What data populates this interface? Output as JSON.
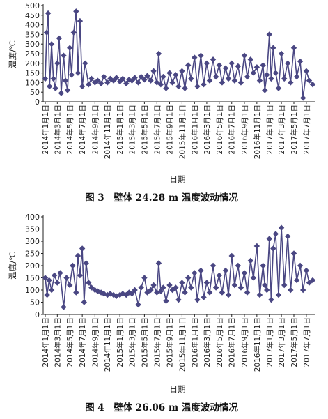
{
  "chart_data": [
    {
      "type": "line",
      "caption": "图 3　壁体 24.28 m 温度波动情况",
      "ylabel": "温度/℃",
      "xlabel": "日期",
      "ylim": [
        0,
        500
      ],
      "yticks": [
        "0",
        "50",
        "100",
        "150",
        "200",
        "250",
        "300",
        "350",
        "400",
        "450",
        "500"
      ],
      "xticks": [
        "2014年1月1日",
        "2014年3月1日",
        "2014年5月1日",
        "2014年7月1日",
        "2014年9月1日",
        "2014年11月1日",
        "2015年1月1日",
        "2015年3月1日",
        "2015年5月1日",
        "2015年7月1日",
        "2015年9月1日",
        "2015年11月1日",
        "2016年1月1日",
        "2016年3月1日",
        "2016年5月1日",
        "2016年7月1日",
        "2016年9月1日",
        "2016年11月1日",
        "2017年1月1日",
        "2017年3月1日",
        "2017年5月1日",
        "2017年7月1日"
      ],
      "xtick_dates": [
        "2014-01-01",
        "2014-03-01",
        "2014-05-01",
        "2014-07-01",
        "2014-09-01",
        "2014-11-01",
        "2015-01-01",
        "2015-03-01",
        "2015-05-01",
        "2015-07-01",
        "2015-09-01",
        "2015-11-01",
        "2016-01-01",
        "2016-03-01",
        "2016-05-01",
        "2016-07-01",
        "2016-09-01",
        "2016-11-01",
        "2017-01-01",
        "2017-03-01",
        "2017-05-01",
        "2017-07-01"
      ],
      "marker": "diamond",
      "color": "#4a4783",
      "series": [
        {
          "x": [
            "2014-01-01",
            "2014-01-08",
            "2014-01-15",
            "2014-01-22",
            "2014-02-01",
            "2014-02-10",
            "2014-02-20",
            "2014-03-01",
            "2014-03-10",
            "2014-03-20",
            "2014-04-01",
            "2014-04-10",
            "2014-04-20",
            "2014-05-01",
            "2014-05-10",
            "2014-05-20",
            "2014-06-01",
            "2014-06-10",
            "2014-06-20",
            "2014-07-01",
            "2014-07-15",
            "2014-08-01",
            "2014-08-15",
            "2014-09-01",
            "2014-09-15",
            "2014-10-01",
            "2014-10-15",
            "2014-11-01",
            "2014-11-15",
            "2014-12-01",
            "2014-12-15",
            "2015-01-01",
            "2015-01-15",
            "2015-02-01",
            "2015-02-15",
            "2015-03-01",
            "2015-03-15",
            "2015-04-01",
            "2015-04-15",
            "2015-05-01",
            "2015-05-15",
            "2015-06-01",
            "2015-06-15",
            "2015-07-01",
            "2015-07-10",
            "2015-07-20",
            "2015-08-01",
            "2015-08-15",
            "2015-09-01",
            "2015-09-15",
            "2015-10-01",
            "2015-10-15",
            "2015-11-01",
            "2015-11-15",
            "2015-12-01",
            "2015-12-15",
            "2016-01-01",
            "2016-01-15",
            "2016-02-01",
            "2016-02-15",
            "2016-03-01",
            "2016-03-15",
            "2016-04-01",
            "2016-04-15",
            "2016-05-01",
            "2016-05-15",
            "2016-06-01",
            "2016-06-15",
            "2016-07-01",
            "2016-07-15",
            "2016-08-01",
            "2016-08-15",
            "2016-09-01",
            "2016-09-15",
            "2016-10-01",
            "2016-10-15",
            "2016-11-01",
            "2016-11-15",
            "2016-12-01",
            "2016-12-10",
            "2016-12-20",
            "2017-01-01",
            "2017-01-10",
            "2017-01-20",
            "2017-02-01",
            "2017-02-15",
            "2017-03-01",
            "2017-03-15",
            "2017-04-01",
            "2017-04-15",
            "2017-05-01",
            "2017-05-15",
            "2017-06-01",
            "2017-06-15",
            "2017-07-01",
            "2017-07-15",
            "2017-08-01"
          ],
          "y": [
            120,
            360,
            460,
            80,
            300,
            120,
            70,
            200,
            330,
            45,
            240,
            110,
            60,
            280,
            140,
            360,
            470,
            150,
            420,
            80,
            200,
            90,
            120,
            100,
            110,
            95,
            130,
            100,
            120,
            110,
            125,
            105,
            120,
            95,
            115,
            110,
            125,
            100,
            130,
            115,
            135,
            110,
            160,
            100,
            250,
            90,
            130,
            70,
            150,
            100,
            140,
            80,
            160,
            70,
            190,
            120,
            230,
            80,
            240,
            90,
            200,
            110,
            220,
            130,
            190,
            100,
            175,
            120,
            200,
            110,
            185,
            100,
            240,
            130,
            220,
            150,
            180,
            110,
            190,
            60,
            140,
            350,
            120,
            280,
            150,
            70,
            250,
            120,
            200,
            100,
            280,
            130,
            210,
            20,
            160,
            110,
            90
          ]
        }
      ]
    },
    {
      "type": "line",
      "caption": "图 4　壁体 26.06 m 温度波动情况",
      "ylabel": "温度/℃",
      "xlabel": "日期",
      "ylim": [
        0,
        400
      ],
      "yticks": [
        "0",
        "50",
        "100",
        "150",
        "200",
        "250",
        "300",
        "350",
        "400"
      ],
      "xticks": [
        "2014年1月1日",
        "2014年3月1日",
        "2014年5月1日",
        "2014年7月1日",
        "2014年9月1日",
        "2014年11月1日",
        "2015年1月1日",
        "2015年3月1日",
        "2015年5月1日",
        "2015年7月1日",
        "2015年9月1日",
        "2015年11月1日",
        "2016年1月1日",
        "2016年3月1日",
        "2016年5月1日",
        "2016年7月1日",
        "2016年9月1日",
        "2016年11月1日",
        "2017年1月1日",
        "2017年3月1日",
        "2017年5月1日",
        "2017年7月1日"
      ],
      "xtick_dates": [
        "2014-01-01",
        "2014-03-01",
        "2014-05-01",
        "2014-07-01",
        "2014-09-01",
        "2014-11-01",
        "2015-01-01",
        "2015-03-01",
        "2015-05-01",
        "2015-07-01",
        "2015-09-01",
        "2015-11-01",
        "2016-01-01",
        "2016-03-01",
        "2016-05-01",
        "2016-07-01",
        "2016-09-01",
        "2016-11-01",
        "2017-01-01",
        "2017-03-01",
        "2017-05-01",
        "2017-07-01"
      ],
      "marker": "diamond",
      "color": "#4a4783",
      "series": [
        {
          "x": [
            "2014-01-01",
            "2014-01-10",
            "2014-01-20",
            "2014-02-01",
            "2014-02-15",
            "2014-03-01",
            "2014-03-15",
            "2014-04-01",
            "2014-04-15",
            "2014-05-01",
            "2014-05-15",
            "2014-06-01",
            "2014-06-10",
            "2014-06-20",
            "2014-07-01",
            "2014-07-10",
            "2014-07-20",
            "2014-08-01",
            "2014-08-15",
            "2014-09-01",
            "2014-09-15",
            "2014-10-01",
            "2014-10-15",
            "2014-11-01",
            "2014-11-15",
            "2014-12-01",
            "2014-12-15",
            "2015-01-01",
            "2015-01-15",
            "2015-02-01",
            "2015-02-15",
            "2015-03-01",
            "2015-03-15",
            "2015-04-01",
            "2015-04-15",
            "2015-05-01",
            "2015-05-15",
            "2015-06-01",
            "2015-06-15",
            "2015-07-01",
            "2015-07-10",
            "2015-07-20",
            "2015-08-01",
            "2015-08-15",
            "2015-09-01",
            "2015-09-15",
            "2015-10-01",
            "2015-10-15",
            "2015-11-01",
            "2015-11-15",
            "2015-12-01",
            "2015-12-15",
            "2016-01-01",
            "2016-01-15",
            "2016-02-01",
            "2016-02-15",
            "2016-03-01",
            "2016-03-15",
            "2016-04-01",
            "2016-04-15",
            "2016-05-01",
            "2016-05-15",
            "2016-06-01",
            "2016-06-15",
            "2016-07-01",
            "2016-07-15",
            "2016-08-01",
            "2016-08-15",
            "2016-09-01",
            "2016-09-15",
            "2016-10-01",
            "2016-10-15",
            "2016-11-01",
            "2016-11-15",
            "2016-12-01",
            "2016-12-10",
            "2016-12-20",
            "2017-01-01",
            "2017-01-10",
            "2017-01-20",
            "2017-02-01",
            "2017-02-15",
            "2017-03-01",
            "2017-03-15",
            "2017-04-01",
            "2017-04-15",
            "2017-05-01",
            "2017-05-15",
            "2017-06-01",
            "2017-06-15",
            "2017-07-01",
            "2017-07-15",
            "2017-08-01"
          ],
          "y": [
            150,
            80,
            140,
            100,
            160,
            130,
            170,
            30,
            150,
            120,
            200,
            90,
            240,
            160,
            270,
            50,
            210,
            130,
            110,
            100,
            95,
            90,
            85,
            80,
            85,
            80,
            75,
            80,
            85,
            80,
            90,
            85,
            100,
            40,
            110,
            150,
            90,
            100,
            120,
            90,
            210,
            95,
            110,
            55,
            120,
            100,
            110,
            60,
            130,
            90,
            150,
            110,
            170,
            60,
            180,
            70,
            130,
            90,
            200,
            110,
            160,
            90,
            180,
            80,
            240,
            120,
            200,
            110,
            170,
            90,
            220,
            150,
            280,
            80,
            200,
            120,
            100,
            310,
            60,
            270,
            330,
            80,
            355,
            120,
            320,
            100,
            250,
            140,
            200,
            100,
            180,
            130,
            140
          ]
        }
      ]
    }
  ]
}
